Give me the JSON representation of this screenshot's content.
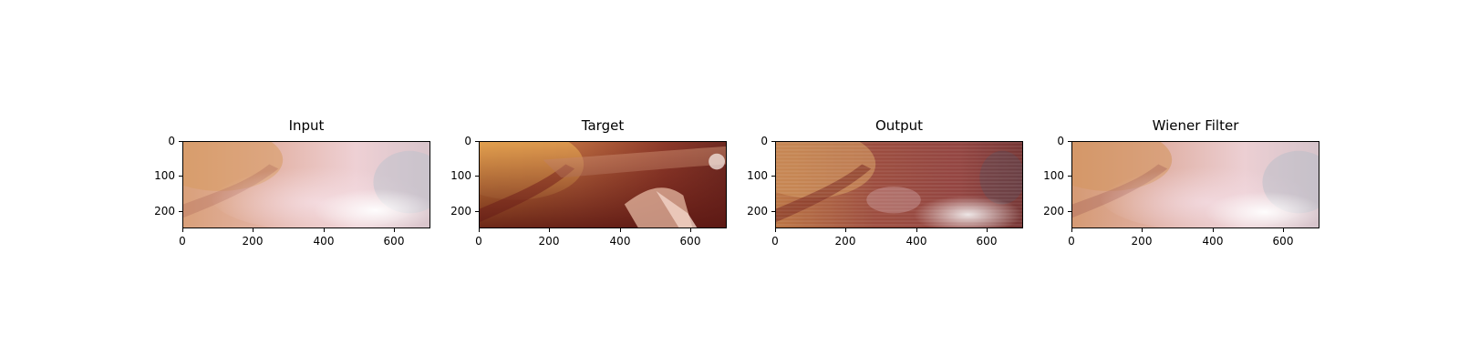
{
  "panels": [
    {
      "title": "Input",
      "image": "laparoscopic surgical scene, hazy"
    },
    {
      "title": "Target",
      "image": "laparoscopic surgical scene, clear"
    },
    {
      "title": "Output",
      "image": "laparoscopic surgical scene, dehazed with artifacts"
    },
    {
      "title": "Wiener Filter",
      "image": "laparoscopic surgical scene, hazy filtered"
    }
  ],
  "axes": {
    "y_ticks": [
      "0",
      "100",
      "200"
    ],
    "x_ticks": [
      "0",
      "200",
      "400",
      "600"
    ]
  }
}
